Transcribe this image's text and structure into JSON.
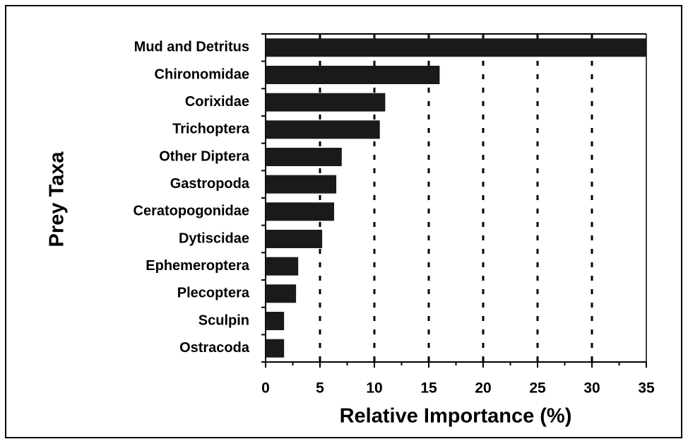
{
  "chart_data": {
    "type": "bar",
    "orientation": "horizontal",
    "xlabel": "Relative Importance (%)",
    "ylabel": "Prey Taxa",
    "categories": [
      "Mud and Detritus",
      "Chironomidae",
      "Corixidae",
      "Trichoptera",
      "Other Diptera",
      "Gastropoda",
      "Ceratopogonidae",
      "Dytiscidae",
      "Ephemeroptera",
      "Plecoptera",
      "Sculpin",
      "Ostracoda"
    ],
    "values": [
      35,
      16,
      11,
      10.5,
      7,
      6.5,
      6.3,
      5.2,
      3,
      2.8,
      1.7,
      1.7
    ],
    "color": "#1a1a1a",
    "xlim": [
      0,
      35
    ],
    "xticks": [
      0,
      5,
      10,
      15,
      20,
      25,
      30,
      35
    ],
    "grid": true
  }
}
